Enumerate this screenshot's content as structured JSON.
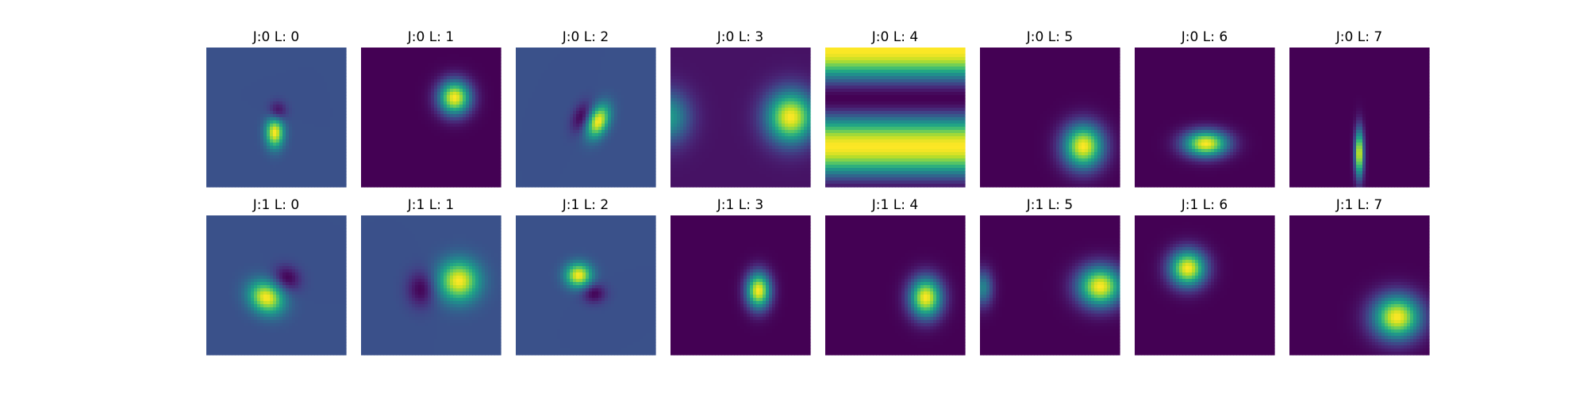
{
  "colormap": "viridis",
  "background": "#ffffff",
  "chart_data": {
    "type": "heatmap",
    "description_rows": [
      "J:0",
      "J:1"
    ],
    "panels": [
      {
        "title": "J:0 L: 0",
        "bg": 0.25,
        "blobs": [
          {
            "x": 0.49,
            "y": 0.61,
            "sx": 0.045,
            "sy": 0.075,
            "amp": 0.75,
            "rot": 0
          },
          {
            "x": 0.51,
            "y": 0.46,
            "sx": 0.045,
            "sy": 0.05,
            "amp": -0.25,
            "rot": 0
          }
        ]
      },
      {
        "title": "J:0 L: 1",
        "bg": 0.0,
        "blobs": [
          {
            "x": 0.67,
            "y": 0.36,
            "sx": 0.08,
            "sy": 0.085,
            "amp": 1.0,
            "rot": 0
          }
        ]
      },
      {
        "title": "J:0 L: 2",
        "bg": 0.25,
        "blobs": [
          {
            "x": 0.59,
            "y": 0.53,
            "sx": 0.05,
            "sy": 0.085,
            "amp": 0.75,
            "rot": 0.4
          },
          {
            "x": 0.47,
            "y": 0.5,
            "sx": 0.045,
            "sy": 0.08,
            "amp": -0.25,
            "rot": 0.4
          }
        ]
      },
      {
        "title": "J:0 L: 3",
        "bg": 0.05,
        "blobs": [
          {
            "x": 0.86,
            "y": 0.5,
            "sx": 0.12,
            "sy": 0.13,
            "amp": 0.95,
            "rot": 0
          },
          {
            "x": -0.02,
            "y": 0.5,
            "sx": 0.11,
            "sy": 0.13,
            "amp": 0.5,
            "rot": 0
          }
        ]
      },
      {
        "title": "J:0 L: 4",
        "bg": 0.0,
        "stripes": true,
        "blobs": []
      },
      {
        "title": "J:0 L: 5",
        "bg": 0.0,
        "blobs": [
          {
            "x": 0.74,
            "y": 0.71,
            "sx": 0.1,
            "sy": 0.11,
            "amp": 1.0,
            "rot": 0
          }
        ]
      },
      {
        "title": "J:0 L: 6",
        "bg": 0.0,
        "blobs": [
          {
            "x": 0.51,
            "y": 0.69,
            "sx": 0.11,
            "sy": 0.065,
            "amp": 1.0,
            "rot": 0
          }
        ]
      },
      {
        "title": "J:0 L: 7",
        "bg": 0.0,
        "blobs": [
          {
            "x": 0.5,
            "y": 0.76,
            "sx": 0.022,
            "sy": 0.12,
            "amp": 1.0,
            "rot": 0
          }
        ]
      },
      {
        "title": "J:1 L: 0",
        "bg": 0.25,
        "blobs": [
          {
            "x": 0.43,
            "y": 0.59,
            "sx": 0.09,
            "sy": 0.075,
            "amp": 0.75,
            "rot": 0.6
          },
          {
            "x": 0.58,
            "y": 0.45,
            "sx": 0.07,
            "sy": 0.06,
            "amp": -0.25,
            "rot": 0.6
          }
        ]
      },
      {
        "title": "J:1 L: 1",
        "bg": 0.25,
        "blobs": [
          {
            "x": 0.7,
            "y": 0.47,
            "sx": 0.1,
            "sy": 0.1,
            "amp": 0.75,
            "rot": 0
          },
          {
            "x": 0.43,
            "y": 0.53,
            "sx": 0.07,
            "sy": 0.09,
            "amp": -0.25,
            "rot": 0
          }
        ]
      },
      {
        "title": "J:1 L: 2",
        "bg": 0.25,
        "blobs": [
          {
            "x": 0.45,
            "y": 0.43,
            "sx": 0.065,
            "sy": 0.06,
            "amp": 0.75,
            "rot": 0
          },
          {
            "x": 0.56,
            "y": 0.56,
            "sx": 0.06,
            "sy": 0.05,
            "amp": -0.25,
            "rot": 0
          }
        ]
      },
      {
        "title": "J:1 L: 3",
        "bg": 0.0,
        "blobs": [
          {
            "x": 0.63,
            "y": 0.54,
            "sx": 0.06,
            "sy": 0.09,
            "amp": 1.0,
            "rot": 0
          }
        ]
      },
      {
        "title": "J:1 L: 4",
        "bg": 0.0,
        "blobs": [
          {
            "x": 0.72,
            "y": 0.59,
            "sx": 0.08,
            "sy": 0.1,
            "amp": 1.0,
            "rot": 0
          }
        ]
      },
      {
        "title": "J:1 L: 5",
        "bg": 0.0,
        "blobs": [
          {
            "x": 0.86,
            "y": 0.51,
            "sx": 0.11,
            "sy": 0.1,
            "amp": 1.0,
            "rot": 0
          },
          {
            "x": 0.02,
            "y": 0.52,
            "sx": 0.05,
            "sy": 0.09,
            "amp": 0.45,
            "rot": 0
          }
        ]
      },
      {
        "title": "J:1 L: 6",
        "bg": 0.0,
        "blobs": [
          {
            "x": 0.38,
            "y": 0.38,
            "sx": 0.09,
            "sy": 0.09,
            "amp": 1.0,
            "rot": 0
          }
        ]
      },
      {
        "title": "J:1 L: 7",
        "bg": 0.0,
        "blobs": [
          {
            "x": 0.77,
            "y": 0.73,
            "sx": 0.12,
            "sy": 0.11,
            "amp": 1.0,
            "rot": 0
          }
        ]
      }
    ]
  }
}
